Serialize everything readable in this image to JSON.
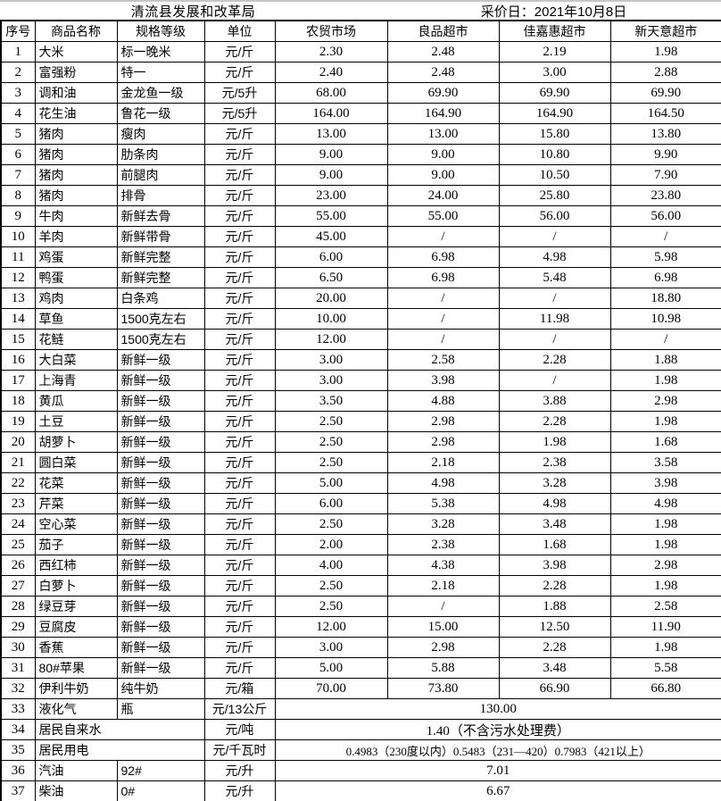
{
  "title": {
    "agency": "清流县发展和改革局",
    "survey_date": "采价日：2021年10月8日"
  },
  "colors": {
    "border": "#000000",
    "text": "#000000",
    "background": "#ffffff",
    "top_edge": "#c6c6c6"
  },
  "table": {
    "columns": [
      "序号",
      "商品名称",
      "规格等级",
      "单位",
      "农贸市场",
      "良品超市",
      "佳嘉惠超市",
      "新天意超市"
    ],
    "rows": [
      {
        "no": "1",
        "name": "大米",
        "spec": "标一晚米",
        "unit": "元/斤",
        "prices": [
          "2.30",
          "2.48",
          "2.19",
          "1.98"
        ]
      },
      {
        "no": "2",
        "name": "富强粉",
        "spec": "特一",
        "unit": "元/斤",
        "prices": [
          "2.40",
          "2.48",
          "3.00",
          "2.88"
        ]
      },
      {
        "no": "3",
        "name": "调和油",
        "spec": "金龙鱼一级",
        "unit": "元/5升",
        "prices": [
          "68.00",
          "69.90",
          "69.90",
          "69.90"
        ]
      },
      {
        "no": "4",
        "name": "花生油",
        "spec": "鲁花一级",
        "unit": "元/5升",
        "prices": [
          "164.00",
          "164.90",
          "164.90",
          "164.50"
        ]
      },
      {
        "no": "5",
        "name": "猪肉",
        "spec": "瘦肉",
        "unit": "元/斤",
        "prices": [
          "13.00",
          "13.00",
          "15.80",
          "13.80"
        ]
      },
      {
        "no": "6",
        "name": "猪肉",
        "spec": "肋条肉",
        "unit": "元/斤",
        "prices": [
          "9.00",
          "9.00",
          "10.80",
          "9.90"
        ]
      },
      {
        "no": "7",
        "name": "猪肉",
        "spec": "前腿肉",
        "unit": "元/斤",
        "prices": [
          "9.00",
          "9.00",
          "10.50",
          "7.90"
        ]
      },
      {
        "no": "8",
        "name": "猪肉",
        "spec": "排骨",
        "unit": "元/斤",
        "prices": [
          "23.00",
          "24.00",
          "25.80",
          "23.80"
        ]
      },
      {
        "no": "9",
        "name": "牛肉",
        "spec": "新鲜去骨",
        "unit": "元/斤",
        "prices": [
          "55.00",
          "55.00",
          "56.00",
          "56.00"
        ]
      },
      {
        "no": "10",
        "name": "羊肉",
        "spec": "新鲜带骨",
        "unit": "元/斤",
        "prices": [
          "45.00",
          "/",
          "/",
          "/"
        ]
      },
      {
        "no": "11",
        "name": "鸡蛋",
        "spec": "新鲜完整",
        "unit": "元/斤",
        "prices": [
          "6.00",
          "6.98",
          "4.98",
          "5.98"
        ]
      },
      {
        "no": "12",
        "name": "鸭蛋",
        "spec": "新鲜完整",
        "unit": "元/斤",
        "prices": [
          "6.50",
          "6.98",
          "5.48",
          "6.98"
        ]
      },
      {
        "no": "13",
        "name": "鸡肉",
        "spec": "白条鸡",
        "unit": "元/斤",
        "prices": [
          "20.00",
          "/",
          "/",
          "18.80"
        ]
      },
      {
        "no": "14",
        "name": "草鱼",
        "spec": "1500克左右",
        "unit": "元/斤",
        "prices": [
          "10.00",
          "/",
          "11.98",
          "10.98"
        ]
      },
      {
        "no": "15",
        "name": "花鲢",
        "spec": "1500克左右",
        "unit": "元/斤",
        "prices": [
          "12.00",
          "/",
          "/",
          "/"
        ]
      },
      {
        "no": "16",
        "name": "大白菜",
        "spec": "新鲜一级",
        "unit": "元/斤",
        "prices": [
          "3.00",
          "2.58",
          "2.28",
          "1.88"
        ]
      },
      {
        "no": "17",
        "name": "上海青",
        "spec": "新鲜一级",
        "unit": "元/斤",
        "prices": [
          "3.00",
          "3.98",
          "/",
          "1.98"
        ]
      },
      {
        "no": "18",
        "name": "黄瓜",
        "spec": "新鲜一级",
        "unit": "元/斤",
        "prices": [
          "3.50",
          "4.88",
          "3.88",
          "2.98"
        ]
      },
      {
        "no": "19",
        "name": "土豆",
        "spec": "新鲜一级",
        "unit": "元/斤",
        "prices": [
          "2.50",
          "2.98",
          "2.28",
          "1.98"
        ]
      },
      {
        "no": "20",
        "name": "胡萝卜",
        "spec": "新鲜一级",
        "unit": "元/斤",
        "prices": [
          "2.50",
          "2.98",
          "1.98",
          "1.68"
        ]
      },
      {
        "no": "21",
        "name": "圆白菜",
        "spec": "新鲜一级",
        "unit": "元/斤",
        "prices": [
          "2.50",
          "2.18",
          "2.38",
          "3.58"
        ]
      },
      {
        "no": "22",
        "name": "花菜",
        "spec": "新鲜一级",
        "unit": "元/斤",
        "prices": [
          "5.00",
          "4.98",
          "3.28",
          "3.98"
        ]
      },
      {
        "no": "23",
        "name": "芹菜",
        "spec": "新鲜一级",
        "unit": "元/斤",
        "prices": [
          "6.00",
          "5.38",
          "4.98",
          "4.98"
        ]
      },
      {
        "no": "24",
        "name": "空心菜",
        "spec": "新鲜一级",
        "unit": "元/斤",
        "prices": [
          "2.50",
          "3.28",
          "3.48",
          "1.98"
        ]
      },
      {
        "no": "25",
        "name": "茄子",
        "spec": "新鲜一级",
        "unit": "元/斤",
        "prices": [
          "2.00",
          "2.38",
          "1.68",
          "1.98"
        ]
      },
      {
        "no": "26",
        "name": "西红柿",
        "spec": "新鲜一级",
        "unit": "元/斤",
        "prices": [
          "4.00",
          "4.38",
          "3.98",
          "2.98"
        ]
      },
      {
        "no": "27",
        "name": "白萝卜",
        "spec": "新鲜一级",
        "unit": "元/斤",
        "prices": [
          "2.50",
          "2.18",
          "2.28",
          "1.98"
        ]
      },
      {
        "no": "28",
        "name": "绿豆芽",
        "spec": "新鲜一级",
        "unit": "元/斤",
        "prices": [
          "2.50",
          "/",
          "1.88",
          "2.58"
        ]
      },
      {
        "no": "29",
        "name": "豆腐皮",
        "spec": "新鲜一级",
        "unit": "元/斤",
        "prices": [
          "12.00",
          "15.00",
          "12.50",
          "11.90"
        ]
      },
      {
        "no": "30",
        "name": "香蕉",
        "spec": "新鲜一级",
        "unit": "元/斤",
        "prices": [
          "3.00",
          "2.98",
          "2.28",
          "1.98"
        ]
      },
      {
        "no": "31",
        "name": "80#苹果",
        "spec": "新鲜一级",
        "unit": "元/斤",
        "prices": [
          "5.00",
          "5.88",
          "3.48",
          "5.58"
        ]
      },
      {
        "no": "32",
        "name": "伊利牛奶",
        "spec": "纯牛奶",
        "unit": "元/箱",
        "prices": [
          "70.00",
          "73.80",
          "66.90",
          "66.80"
        ]
      },
      {
        "no": "33",
        "name": "液化气",
        "spec": "瓶",
        "unit": "元/13公斤",
        "prices_merged": "130.00"
      },
      {
        "no": "34",
        "name": "居民自来水",
        "name_spans_spec": true,
        "unit": "元/吨",
        "prices_merged": "1.40（不含污水处理费）"
      },
      {
        "no": "35",
        "name": "居民用电",
        "name_spans_spec": true,
        "unit": "元/千瓦时",
        "prices_merged": "0.4983（230度以内）0.5483（231—420）0.7983（421以上）"
      },
      {
        "no": "36",
        "name": "汽油",
        "spec": "92#",
        "unit": "元/升",
        "prices_merged": "7.01"
      },
      {
        "no": "37",
        "name": "柴油",
        "spec": "0#",
        "unit": "元/升",
        "prices_merged": "6.67"
      }
    ]
  }
}
